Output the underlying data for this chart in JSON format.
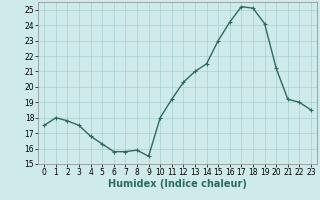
{
  "x": [
    0,
    1,
    2,
    3,
    4,
    5,
    6,
    7,
    8,
    9,
    10,
    11,
    12,
    13,
    14,
    15,
    16,
    17,
    18,
    19,
    20,
    21,
    22,
    23
  ],
  "y": [
    17.5,
    18.0,
    17.8,
    17.5,
    16.8,
    16.3,
    15.8,
    15.8,
    15.9,
    15.5,
    18.0,
    19.2,
    20.3,
    21.0,
    21.5,
    23.0,
    24.2,
    25.2,
    25.1,
    24.1,
    21.2,
    19.2,
    19.0,
    18.5
  ],
  "xlabel": "Humidex (Indice chaleur)",
  "ylabel": "",
  "ylim": [
    15,
    25.5
  ],
  "xlim": [
    -0.5,
    23.5
  ],
  "yticks": [
    15,
    16,
    17,
    18,
    19,
    20,
    21,
    22,
    23,
    24,
    25
  ],
  "xticks": [
    0,
    1,
    2,
    3,
    4,
    5,
    6,
    7,
    8,
    9,
    10,
    11,
    12,
    13,
    14,
    15,
    16,
    17,
    18,
    19,
    20,
    21,
    22,
    23
  ],
  "line_color": "#2e6b5e",
  "marker": "+",
  "bg_color": "#ceeaea",
  "grid_color": "#aacfcf",
  "tick_label_fontsize": 5.5,
  "xlabel_fontsize": 7.0,
  "marker_size": 3,
  "line_width": 1.0
}
